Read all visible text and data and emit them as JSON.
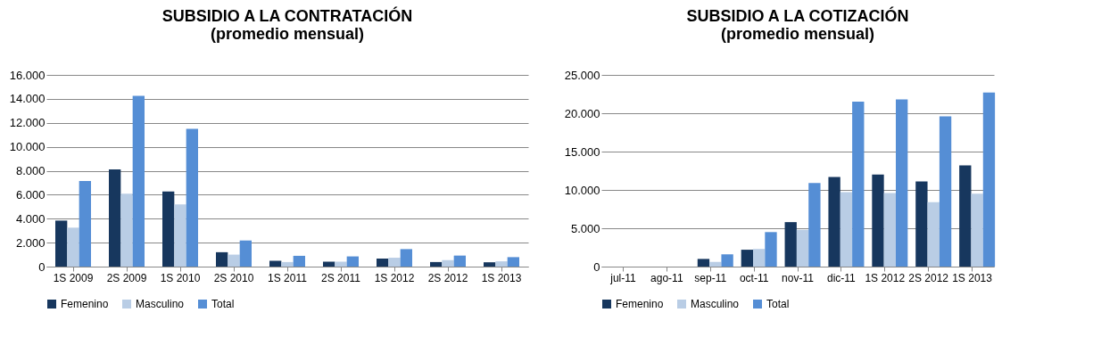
{
  "chart_data": [
    {
      "type": "bar",
      "title": [
        "SUBSIDIO A LA CONTRATACIÓN",
        "(promedio mensual)"
      ],
      "categories": [
        "1S 2009",
        "2S 2009",
        "1S 2010",
        "2S 2010",
        "1S 2011",
        "2S 2011",
        "1S 2012",
        "2S 2012",
        "1S 2013"
      ],
      "series": [
        {
          "name": "Femenino",
          "color": "#17375e",
          "values": [
            3840,
            8120,
            6270,
            1200,
            490,
            410,
            670,
            380,
            360
          ]
        },
        {
          "name": "Masculino",
          "color": "#b9cde5",
          "values": [
            3250,
            6090,
            5200,
            1000,
            380,
            410,
            740,
            540,
            440
          ]
        },
        {
          "name": "Total",
          "color": "#558ed5",
          "values": [
            7140,
            14260,
            11500,
            2180,
            900,
            850,
            1460,
            920,
            790
          ]
        }
      ],
      "ylim": [
        0,
        16000
      ],
      "yticks": [
        0,
        {
          "value": 2000,
          "label": "2.000"
        },
        {
          "value": 4000,
          "label": "4.000"
        },
        {
          "value": 6000,
          "label": "6.000"
        },
        {
          "value": 8000,
          "label": "8.000"
        },
        {
          "value": 10000,
          "label": "10.000"
        },
        {
          "value": 12000,
          "label": "12.000"
        },
        {
          "value": 14000,
          "label": "14.000"
        },
        {
          "value": 16000,
          "label": "16.000"
        }
      ],
      "grid": "y",
      "legend": "bottom"
    },
    {
      "type": "bar",
      "title": [
        "SUBSIDIO A LA COTIZACIÓN",
        "(promedio mensual)"
      ],
      "categories": [
        "jul-11",
        "ago-11",
        "sep-11",
        "oct-11",
        "nov-11",
        "dic-11",
        "1S 2012",
        "2S 2012",
        "1S 2013"
      ],
      "series": [
        {
          "name": "Femenino",
          "color": "#17375e",
          "values": [
            0,
            0,
            1000,
            2200,
            5800,
            11700,
            12000,
            11100,
            13200
          ]
        },
        {
          "name": "Masculino",
          "color": "#b9cde5",
          "values": [
            0,
            0,
            600,
            2300,
            4800,
            9700,
            9600,
            8400,
            9500
          ]
        },
        {
          "name": "Total",
          "color": "#558ed5",
          "values": [
            0,
            0,
            1600,
            4500,
            10900,
            21500,
            21800,
            19600,
            22700
          ]
        }
      ],
      "ylim": [
        0,
        25000
      ],
      "yticks": [
        0,
        {
          "value": 5000,
          "label": "5.000"
        },
        {
          "value": 10000,
          "label": "10.000"
        },
        {
          "value": 15000,
          "label": "15.000"
        },
        {
          "value": 20000,
          "label": "20.000"
        },
        {
          "value": 25000,
          "label": "25.000"
        }
      ],
      "grid": "y",
      "legend": "bottom"
    }
  ]
}
